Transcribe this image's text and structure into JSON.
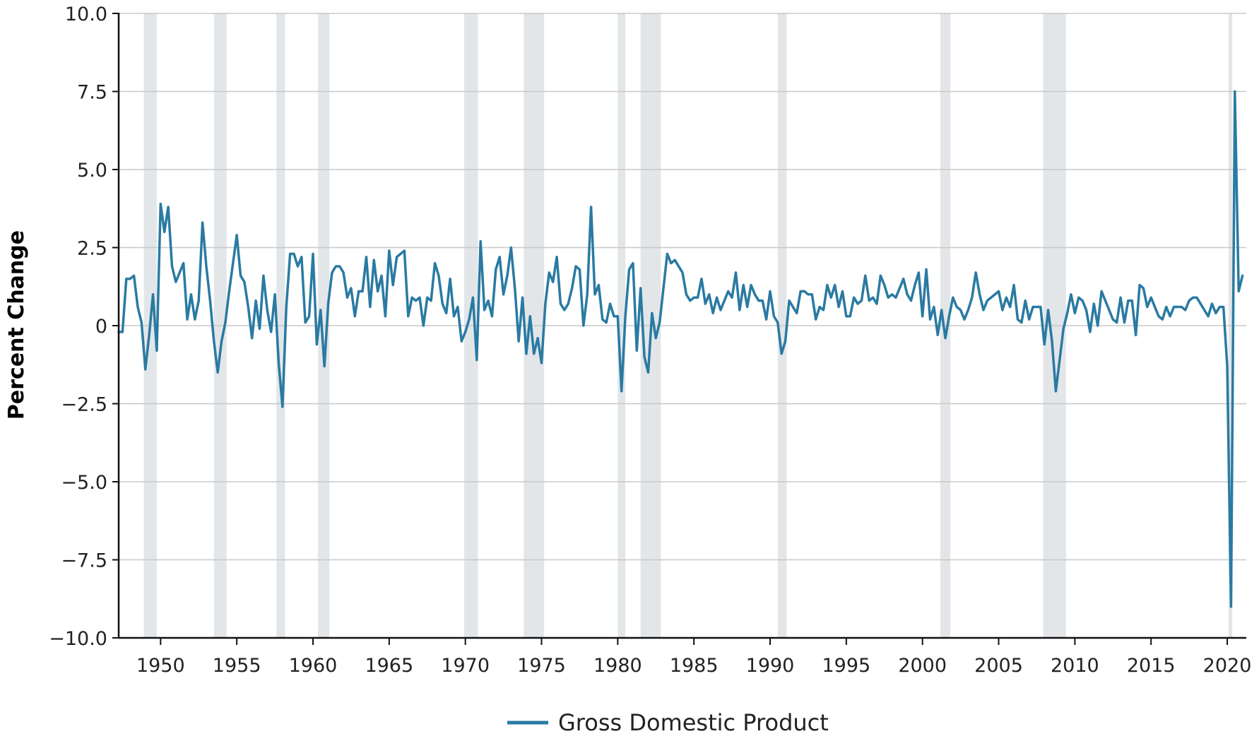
{
  "chart_data": {
    "type": "line",
    "title": "",
    "xlabel": "",
    "ylabel": "Percent Change",
    "xlim": [
      1947.25,
      2021.25
    ],
    "ylim": [
      -10.0,
      10.0
    ],
    "yticks": [
      {
        "value": 10.0,
        "label": "10.0"
      },
      {
        "value": 7.5,
        "label": "7.5"
      },
      {
        "value": 5.0,
        "label": "5.0"
      },
      {
        "value": 2.5,
        "label": "2.5"
      },
      {
        "value": 0.0,
        "label": "0"
      },
      {
        "value": -2.5,
        "label": "−2.5"
      },
      {
        "value": -5.0,
        "label": "−5.0"
      },
      {
        "value": -7.5,
        "label": "−7.5"
      },
      {
        "value": -10.0,
        "label": "−10.0"
      }
    ],
    "xticks": [
      {
        "value": 1950,
        "label": "1950"
      },
      {
        "value": 1955,
        "label": "1955"
      },
      {
        "value": 1960,
        "label": "1960"
      },
      {
        "value": 1965,
        "label": "1965"
      },
      {
        "value": 1970,
        "label": "1970"
      },
      {
        "value": 1975,
        "label": "1975"
      },
      {
        "value": 1980,
        "label": "1980"
      },
      {
        "value": 1985,
        "label": "1985"
      },
      {
        "value": 1990,
        "label": "1990"
      },
      {
        "value": 1995,
        "label": "1995"
      },
      {
        "value": 2000,
        "label": "2000"
      },
      {
        "value": 2005,
        "label": "2005"
      },
      {
        "value": 2010,
        "label": "2010"
      },
      {
        "value": 2015,
        "label": "2015"
      },
      {
        "value": 2020,
        "label": "2020"
      }
    ],
    "grid": true,
    "legend_position": "bottom-center",
    "recessions": [
      [
        1948.9,
        1949.75
      ],
      [
        1953.5,
        1954.33
      ],
      [
        1957.6,
        1958.17
      ],
      [
        1960.33,
        1961.08
      ],
      [
        1969.92,
        1970.83
      ],
      [
        1973.83,
        1975.17
      ],
      [
        1980.0,
        1980.5
      ],
      [
        1981.5,
        1982.83
      ],
      [
        1990.5,
        1991.08
      ],
      [
        2001.17,
        2001.83
      ],
      [
        2007.92,
        2009.42
      ],
      [
        2020.08,
        2020.33
      ]
    ],
    "colors": {
      "line": "#2a7aa2",
      "recession": "#e3e6e9",
      "grid": "#c8c8c8",
      "axis": "#111111"
    },
    "series": [
      {
        "name": "Gross Domestic Product",
        "color": "#2a7aa2",
        "x": [
          1947.25,
          1947.5,
          1947.75,
          1948,
          1948.25,
          1948.5,
          1948.75,
          1949,
          1949.25,
          1949.5,
          1949.75,
          1950,
          1950.25,
          1950.5,
          1950.75,
          1951,
          1951.25,
          1951.5,
          1951.75,
          1952,
          1952.25,
          1952.5,
          1952.75,
          1953,
          1953.25,
          1953.5,
          1953.75,
          1954,
          1954.25,
          1954.5,
          1954.75,
          1955,
          1955.25,
          1955.5,
          1955.75,
          1956,
          1956.25,
          1956.5,
          1956.75,
          1957,
          1957.25,
          1957.5,
          1957.75,
          1958,
          1958.25,
          1958.5,
          1958.75,
          1959,
          1959.25,
          1959.5,
          1959.75,
          1960,
          1960.25,
          1960.5,
          1960.75,
          1961,
          1961.25,
          1961.5,
          1961.75,
          1962,
          1962.25,
          1962.5,
          1962.75,
          1963,
          1963.25,
          1963.5,
          1963.75,
          1964,
          1964.25,
          1964.5,
          1964.75,
          1965,
          1965.25,
          1965.5,
          1965.75,
          1966,
          1966.25,
          1966.5,
          1966.75,
          1967,
          1967.25,
          1967.5,
          1967.75,
          1968,
          1968.25,
          1968.5,
          1968.75,
          1969,
          1969.25,
          1969.5,
          1969.75,
          1970,
          1970.25,
          1970.5,
          1970.75,
          1971,
          1971.25,
          1971.5,
          1971.75,
          1972,
          1972.25,
          1972.5,
          1972.75,
          1973,
          1973.25,
          1973.5,
          1973.75,
          1974,
          1974.25,
          1974.5,
          1974.75,
          1975,
          1975.25,
          1975.5,
          1975.75,
          1976,
          1976.25,
          1976.5,
          1976.75,
          1977,
          1977.25,
          1977.5,
          1977.75,
          1978,
          1978.25,
          1978.5,
          1978.75,
          1979,
          1979.25,
          1979.5,
          1979.75,
          1980,
          1980.25,
          1980.5,
          1980.75,
          1981,
          1981.25,
          1981.5,
          1981.75,
          1982,
          1982.25,
          1982.5,
          1982.75,
          1983,
          1983.25,
          1983.5,
          1983.75,
          1984,
          1984.25,
          1984.5,
          1984.75,
          1985,
          1985.25,
          1985.5,
          1985.75,
          1986,
          1986.25,
          1986.5,
          1986.75,
          1987,
          1987.25,
          1987.5,
          1987.75,
          1988,
          1988.25,
          1988.5,
          1988.75,
          1989,
          1989.25,
          1989.5,
          1989.75,
          1990,
          1990.25,
          1990.5,
          1990.75,
          1991,
          1991.25,
          1991.5,
          1991.75,
          1992,
          1992.25,
          1992.5,
          1992.75,
          1993,
          1993.25,
          1993.5,
          1993.75,
          1994,
          1994.25,
          1994.5,
          1994.75,
          1995,
          1995.25,
          1995.5,
          1995.75,
          1996,
          1996.25,
          1996.5,
          1996.75,
          1997,
          1997.25,
          1997.5,
          1997.75,
          1998,
          1998.25,
          1998.5,
          1998.75,
          1999,
          1999.25,
          1999.5,
          1999.75,
          2000,
          2000.25,
          2000.5,
          2000.75,
          2001,
          2001.25,
          2001.5,
          2001.75,
          2002,
          2002.25,
          2002.5,
          2002.75,
          2003,
          2003.25,
          2003.5,
          2003.75,
          2004,
          2004.25,
          2004.5,
          2004.75,
          2005,
          2005.25,
          2005.5,
          2005.75,
          2006,
          2006.25,
          2006.5,
          2006.75,
          2007,
          2007.25,
          2007.5,
          2007.75,
          2008,
          2008.25,
          2008.5,
          2008.75,
          2009,
          2009.25,
          2009.5,
          2009.75,
          2010,
          2010.25,
          2010.5,
          2010.75,
          2011,
          2011.25,
          2011.5,
          2011.75,
          2012,
          2012.25,
          2012.5,
          2012.75,
          2013,
          2013.25,
          2013.5,
          2013.75,
          2014,
          2014.25,
          2014.5,
          2014.75,
          2015,
          2015.25,
          2015.5,
          2015.75,
          2016,
          2016.25,
          2016.5,
          2016.75,
          2017,
          2017.25,
          2017.5,
          2017.75,
          2018,
          2018.25,
          2018.5,
          2018.75,
          2019,
          2019.25,
          2019.5,
          2019.75,
          2020,
          2020.25,
          2020.5,
          2020.75,
          2021
        ],
        "values": [
          -0.2,
          -0.2,
          1.5,
          1.5,
          1.6,
          0.6,
          0.1,
          -1.4,
          -0.3,
          1.0,
          -0.8,
          3.9,
          3.0,
          3.8,
          1.9,
          1.4,
          1.7,
          2.0,
          0.2,
          1.0,
          0.2,
          0.8,
          3.3,
          1.9,
          0.8,
          -0.5,
          -1.5,
          -0.5,
          0.1,
          1.1,
          2.0,
          2.9,
          1.6,
          1.4,
          0.6,
          -0.4,
          0.8,
          -0.1,
          1.6,
          0.5,
          -0.2,
          1.0,
          -1.2,
          -2.6,
          0.6,
          2.3,
          2.3,
          1.9,
          2.2,
          0.1,
          0.3,
          2.3,
          -0.6,
          0.5,
          -1.3,
          0.7,
          1.7,
          1.9,
          1.9,
          1.7,
          0.9,
          1.2,
          0.3,
          1.1,
          1.1,
          2.2,
          0.6,
          2.1,
          1.1,
          1.6,
          0.3,
          2.4,
          1.3,
          2.2,
          2.3,
          2.4,
          0.3,
          0.9,
          0.8,
          0.9,
          0.0,
          0.9,
          0.8,
          2.0,
          1.6,
          0.7,
          0.4,
          1.5,
          0.3,
          0.6,
          -0.5,
          -0.2,
          0.2,
          0.9,
          -1.1,
          2.7,
          0.5,
          0.8,
          0.3,
          1.8,
          2.2,
          1.0,
          1.6,
          2.5,
          1.2,
          -0.5,
          0.9,
          -0.9,
          0.3,
          -0.9,
          -0.4,
          -1.2,
          0.7,
          1.7,
          1.4,
          2.2,
          0.7,
          0.5,
          0.7,
          1.2,
          1.9,
          1.8,
          0.0,
          1.0,
          3.8,
          1.0,
          1.3,
          0.2,
          0.1,
          0.7,
          0.3,
          0.3,
          -2.1,
          0.3,
          1.8,
          2.0,
          -0.8,
          1.2,
          -1.0,
          -1.5,
          0.4,
          -0.4,
          0.1,
          1.2,
          2.3,
          2.0,
          2.1,
          1.9,
          1.7,
          1.0,
          0.8,
          0.9,
          0.9,
          1.5,
          0.7,
          1.0,
          0.4,
          0.9,
          0.5,
          0.8,
          1.1,
          0.9,
          1.7,
          0.5,
          1.3,
          0.6,
          1.3,
          1.0,
          0.8,
          0.8,
          0.2,
          1.1,
          0.3,
          0.1,
          -0.9,
          -0.5,
          0.8,
          0.6,
          0.4,
          1.1,
          1.1,
          1.0,
          1.0,
          0.2,
          0.6,
          0.5,
          1.3,
          0.9,
          1.3,
          0.6,
          1.1,
          0.3,
          0.3,
          0.9,
          0.7,
          0.8,
          1.6,
          0.8,
          0.9,
          0.7,
          1.6,
          1.3,
          0.9,
          1.0,
          0.9,
          1.2,
          1.5,
          1.0,
          0.8,
          1.3,
          1.7,
          0.3,
          1.8,
          0.2,
          0.6,
          -0.3,
          0.5,
          -0.4,
          0.3,
          0.9,
          0.6,
          0.5,
          0.2,
          0.5,
          0.9,
          1.7,
          1.0,
          0.5,
          0.8,
          0.9,
          1.0,
          1.1,
          0.5,
          0.9,
          0.6,
          1.3,
          0.2,
          0.1,
          0.8,
          0.2,
          0.6,
          0.6,
          0.6,
          -0.6,
          0.5,
          -0.5,
          -2.1,
          -1.1,
          -0.1,
          0.4,
          1.0,
          0.4,
          0.9,
          0.8,
          0.5,
          -0.2,
          0.7,
          0.0,
          1.1,
          0.8,
          0.5,
          0.2,
          0.1,
          0.9,
          0.1,
          0.8,
          0.8,
          -0.3,
          1.3,
          1.2,
          0.6,
          0.9,
          0.6,
          0.3,
          0.2,
          0.6,
          0.3,
          0.6,
          0.6,
          0.6,
          0.5,
          0.8,
          0.9,
          0.9,
          0.7,
          0.5,
          0.3,
          0.7,
          0.4,
          0.6,
          0.6,
          -1.3,
          -9.0,
          7.5,
          1.1,
          1.6
        ]
      }
    ]
  }
}
